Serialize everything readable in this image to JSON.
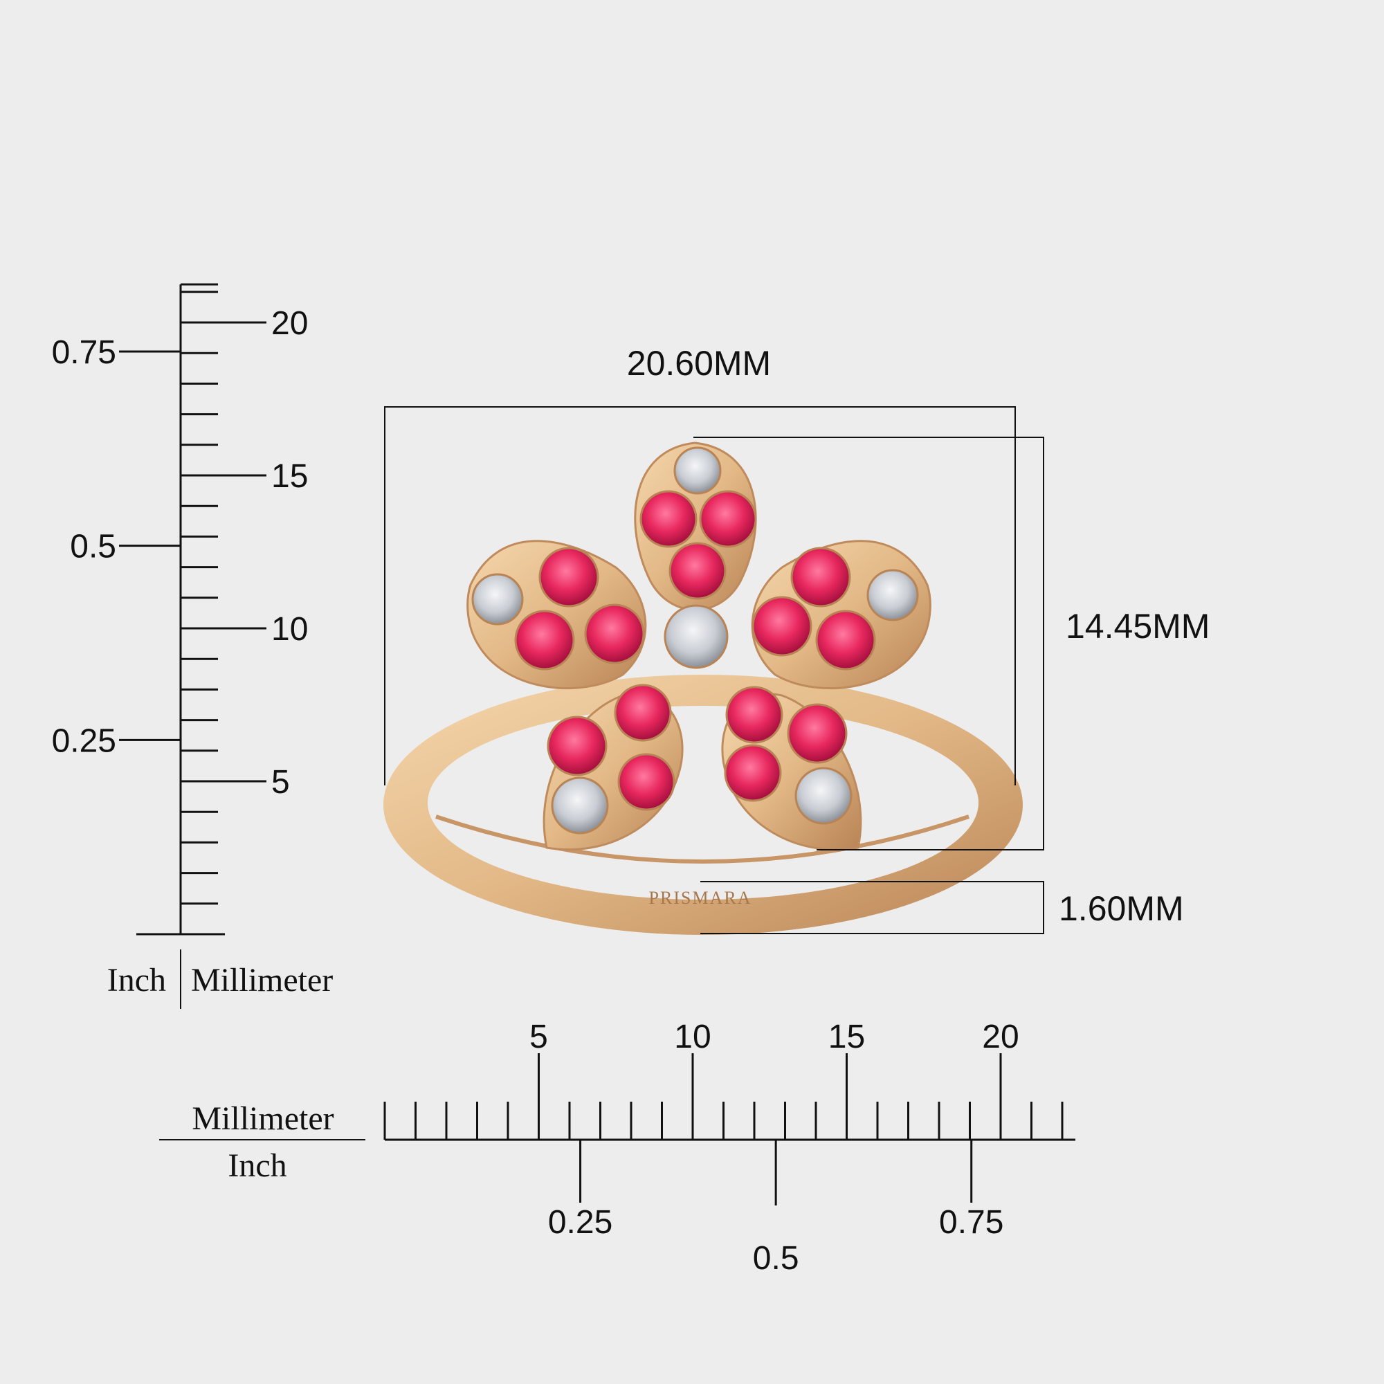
{
  "colors": {
    "background": "#ededed",
    "gold": "#e2b886",
    "gold_dark": "#b98455",
    "gemstone_pink": "#e8285e",
    "diamond": "#c9cdd3",
    "line": "#111111"
  },
  "dimensions": {
    "width_label": "20.60MM",
    "height_label": "14.45MM",
    "band_label": "1.60MM"
  },
  "engraving": "PRISMARA",
  "vertical_scale": {
    "mm_ticks": [
      {
        "value": 20,
        "label": "20"
      },
      {
        "value": 15,
        "label": "15"
      },
      {
        "value": 10,
        "label": "10"
      },
      {
        "value": 5,
        "label": "5"
      }
    ],
    "inch_ticks": [
      {
        "value": 0.75,
        "label": "0.75"
      },
      {
        "value": 0.5,
        "label": "0.5"
      },
      {
        "value": 0.25,
        "label": "0.25"
      }
    ],
    "unit_left": "Inch",
    "unit_right": "Millimeter"
  },
  "horizontal_scale": {
    "mm_ticks": [
      {
        "value": 5,
        "label": "5"
      },
      {
        "value": 10,
        "label": "10"
      },
      {
        "value": 15,
        "label": "15"
      },
      {
        "value": 20,
        "label": "20"
      }
    ],
    "inch_ticks": [
      {
        "value": 0.25,
        "label": "0.25"
      },
      {
        "value": 0.5,
        "label": "0.5"
      },
      {
        "value": 0.75,
        "label": "0.75"
      }
    ],
    "unit_top": "Millimeter",
    "unit_bottom": "Inch"
  }
}
